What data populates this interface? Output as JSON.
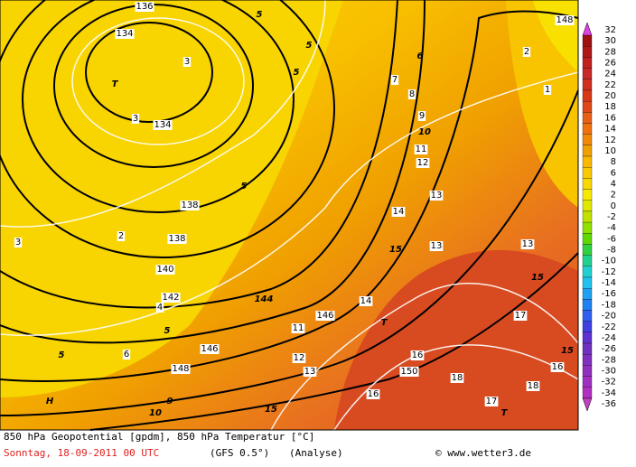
{
  "colorbar": {
    "labels": [
      32,
      30,
      28,
      26,
      24,
      22,
      20,
      18,
      16,
      14,
      12,
      10,
      8,
      6,
      4,
      2,
      0,
      -2,
      -4,
      -6,
      -8,
      -10,
      -12,
      -14,
      -16,
      -18,
      -20,
      -22,
      -24,
      -26,
      -28,
      -30,
      -32,
      -34,
      -36
    ]
  },
  "map": {
    "labels": [
      "136",
      "134",
      "3",
      "T",
      "3",
      "134",
      "138",
      "138",
      "140",
      "142",
      "144",
      "146",
      "146",
      "148",
      "150",
      "5",
      "5",
      "5",
      "5",
      "5",
      "5",
      "10",
      "15",
      "15",
      "15",
      "15",
      "14",
      "13",
      "13",
      "13",
      "11",
      "12",
      "9",
      "8",
      "7",
      "6",
      "16",
      "17",
      "18",
      "17",
      "16",
      "18",
      "T",
      "T",
      "H",
      "3",
      "2",
      "4",
      "6",
      "1",
      "2",
      "148",
      "9",
      "10",
      "11",
      "12",
      "13",
      "14",
      "16"
    ]
  },
  "footer": {
    "title": "850 hPa Geopotential [gpdm], 850 hPa Temperatur [°C]",
    "date": "Sonntag, 18-09-2011  00 UTC",
    "model": "(GFS 0.5°)",
    "run": "(Analyse)",
    "credit": "© www.wetter3.de"
  }
}
